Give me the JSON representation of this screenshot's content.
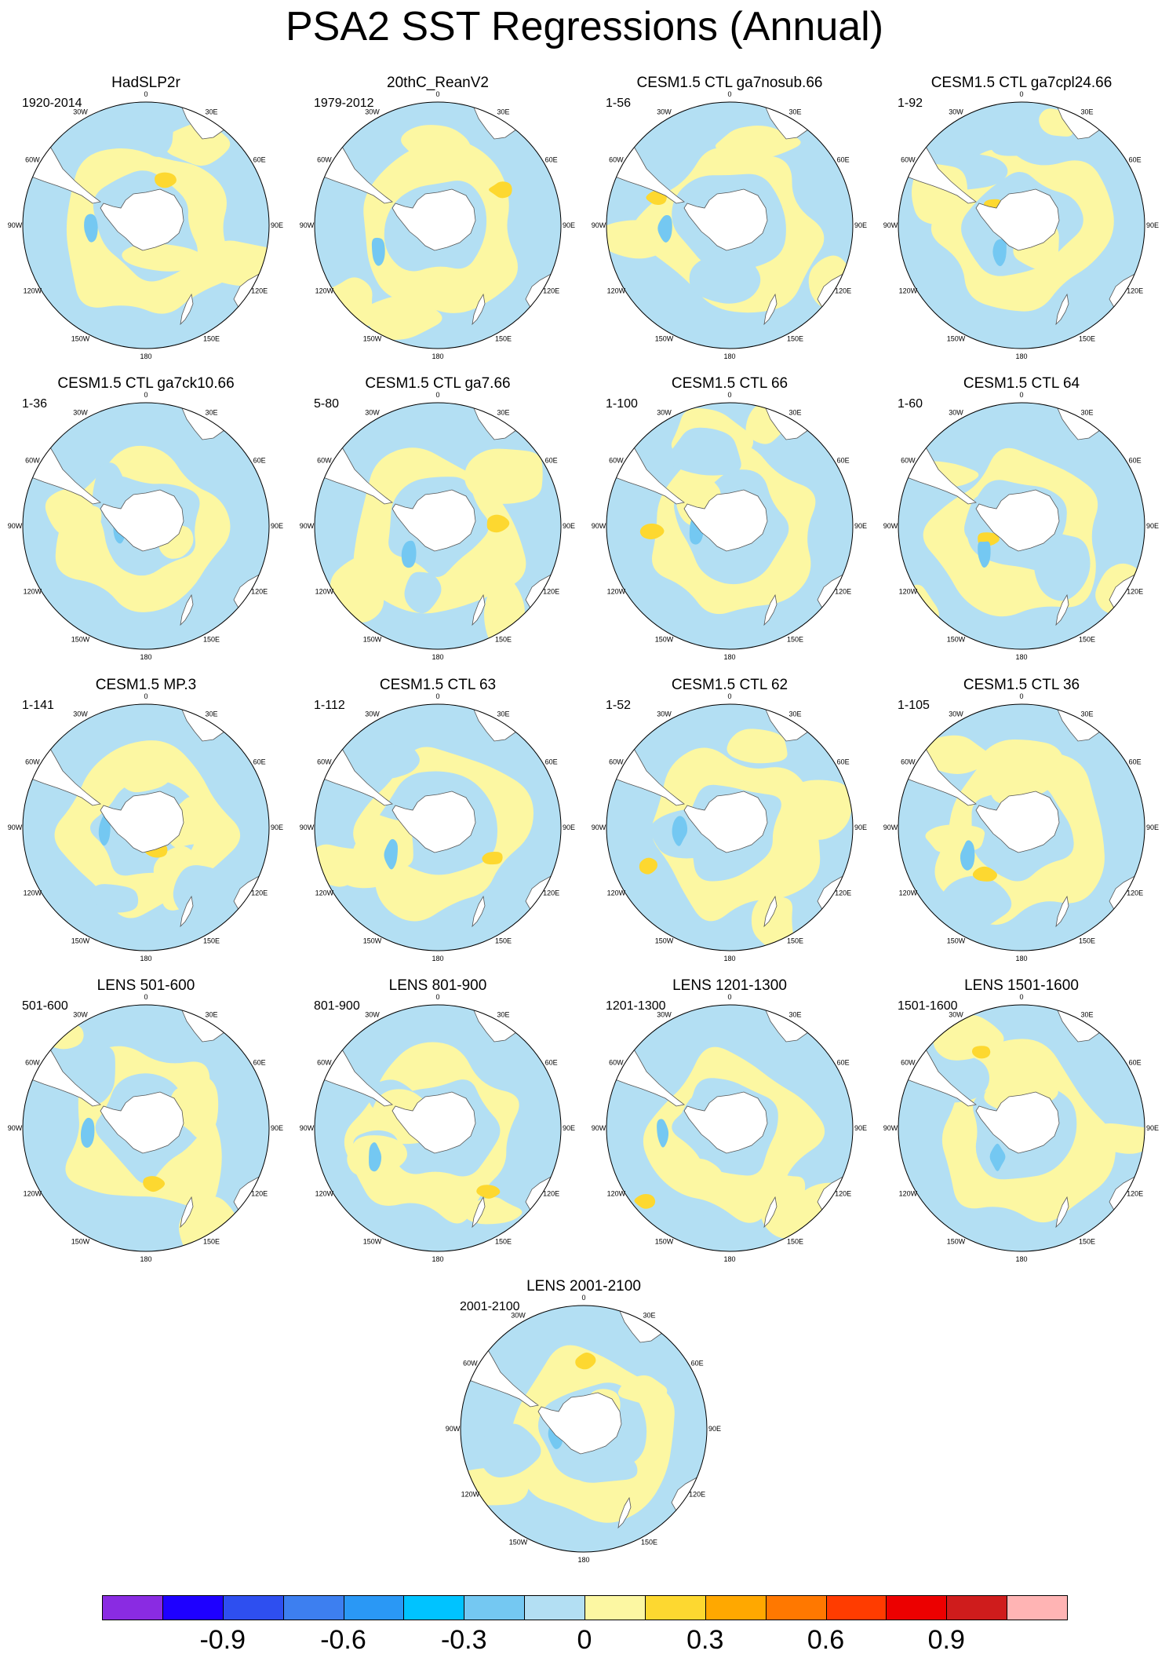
{
  "title": "PSA2 SST Regressions (Annual)",
  "lon_labels": [
    "0",
    "30E",
    "60E",
    "90E",
    "120E",
    "150E",
    "180",
    "150W",
    "120W",
    "90W",
    "60W",
    "30W"
  ],
  "panels": [
    {
      "title": "HadSLP2r",
      "years": "1920-2014"
    },
    {
      "title": "20thC_ReanV2",
      "years": "1979-2012"
    },
    {
      "title": "CESM1.5 CTL ga7nosub.66",
      "years": "1-56"
    },
    {
      "title": "CESM1.5 CTL ga7cpl24.66",
      "years": "1-92"
    },
    {
      "title": "CESM1.5 CTL ga7ck10.66",
      "years": "1-36"
    },
    {
      "title": "CESM1.5 CTL ga7.66",
      "years": "5-80"
    },
    {
      "title": "CESM1.5 CTL 66",
      "years": "1-100"
    },
    {
      "title": "CESM1.5 CTL 64",
      "years": "1-60"
    },
    {
      "title": "CESM1.5 MP.3",
      "years": "1-141"
    },
    {
      "title": "CESM1.5 CTL 63",
      "years": "1-112"
    },
    {
      "title": "CESM1.5 CTL 62",
      "years": "1-52"
    },
    {
      "title": "CESM1.5 CTL 36",
      "years": "1-105"
    },
    {
      "title": "LENS 501-600",
      "years": "501-600"
    },
    {
      "title": "LENS 801-900",
      "years": "801-900"
    },
    {
      "title": "LENS 1201-1300",
      "years": "1201-1300"
    },
    {
      "title": "LENS 1501-1600",
      "years": "1501-1600"
    },
    {
      "title": "LENS 2001-2100",
      "years": "2001-2100"
    }
  ],
  "colorbar": {
    "colors": [
      "#8a2be2",
      "#1e00ff",
      "#2e4ff0",
      "#3d7ff0",
      "#2a98f5",
      "#00c3ff",
      "#74c8f2",
      "#b3dff3",
      "#fcf7a2",
      "#fdd830",
      "#ffa800",
      "#ff7800",
      "#ff3c00",
      "#ec0000",
      "#cf1c1c",
      "#ffb4b4"
    ],
    "tick_labels": [
      "-0.9",
      "-0.6",
      "-0.3",
      "0",
      "0.3",
      "0.6",
      "0.9"
    ],
    "tick_values": [
      -0.9,
      -0.6,
      -0.3,
      0,
      0.3,
      0.6,
      0.9
    ],
    "range": [
      -1.2,
      1.2
    ]
  }
}
